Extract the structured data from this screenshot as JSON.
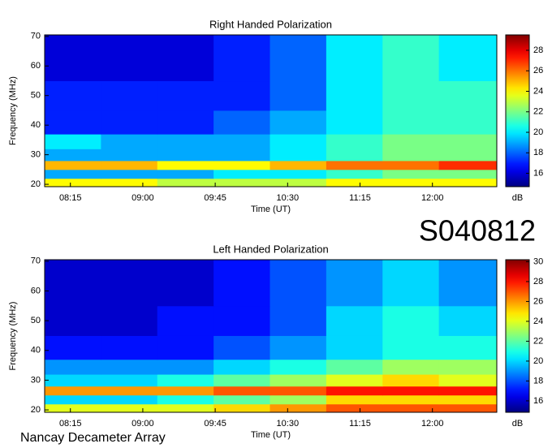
{
  "chart_data": [
    {
      "type": "heatmap",
      "title": "Right Handed Polarization",
      "x_label": "Time (UT)",
      "y_label": "Frequency (MHz)",
      "xlim": [
        479,
        760
      ],
      "ylim": [
        19.2,
        70.5
      ],
      "xticks": [
        {
          "value": 495,
          "label": "08:15"
        },
        {
          "value": 540,
          "label": "09:00"
        },
        {
          "value": 585,
          "label": "09:45"
        },
        {
          "value": 630,
          "label": "10:30"
        },
        {
          "value": 675,
          "label": "11:15"
        },
        {
          "value": 720,
          "label": "12:00"
        }
      ],
      "yticks": [
        20,
        30,
        40,
        50,
        60,
        70
      ],
      "xbins": [
        479,
        514,
        549,
        584,
        619,
        654,
        689,
        724,
        760
      ],
      "ybins": [
        19.2,
        22,
        25,
        28,
        32,
        37,
        45,
        55,
        70.5
      ],
      "z": [
        [
          24,
          24,
          23,
          23,
          23,
          24,
          24,
          24
        ],
        [
          19,
          19,
          19,
          20,
          20,
          21,
          22,
          22
        ],
        [
          25,
          25,
          24,
          24,
          25,
          26,
          26,
          27
        ],
        [
          19,
          19,
          19,
          19,
          20,
          21,
          22,
          22
        ],
        [
          20,
          19,
          19,
          19,
          20,
          21,
          22,
          22
        ],
        [
          17,
          17,
          17,
          18,
          19,
          20,
          21,
          21
        ],
        [
          17,
          17,
          17,
          17,
          18,
          20,
          21,
          21
        ],
        [
          16,
          16,
          16,
          17,
          18,
          20,
          21,
          20
        ]
      ],
      "colormap": "jet",
      "clim": [
        14.7,
        29.5
      ],
      "cticks": [
        16,
        18,
        20,
        22,
        24,
        26,
        28
      ],
      "clabel": "dB"
    },
    {
      "type": "heatmap",
      "title": "Left Handed Polarization",
      "x_label": "Time (UT)",
      "y_label": "Frequency (MHz)",
      "xlim": [
        479,
        760
      ],
      "ylim": [
        19.2,
        70.5
      ],
      "xticks": [
        {
          "value": 495,
          "label": "08:15"
        },
        {
          "value": 540,
          "label": "09:00"
        },
        {
          "value": 585,
          "label": "09:45"
        },
        {
          "value": 630,
          "label": "10:30"
        },
        {
          "value": 675,
          "label": "11:15"
        },
        {
          "value": 720,
          "label": "12:00"
        }
      ],
      "yticks": [
        20,
        30,
        40,
        50,
        60,
        70
      ],
      "xbins": [
        479,
        514,
        549,
        584,
        619,
        654,
        689,
        724,
        760
      ],
      "ybins": [
        19.2,
        22,
        25,
        28,
        32,
        37,
        45,
        55,
        70.5
      ],
      "z": [
        [
          24,
          24,
          24,
          25,
          26,
          27,
          27,
          27
        ],
        [
          20,
          20,
          21,
          22,
          23,
          25,
          25,
          25
        ],
        [
          26,
          26,
          26,
          27,
          27,
          28,
          28,
          28
        ],
        [
          20,
          20,
          21,
          22,
          23,
          24,
          25,
          24
        ],
        [
          19,
          19,
          19,
          20,
          21,
          22,
          23,
          23
        ],
        [
          17,
          17,
          17,
          18,
          19,
          20,
          21,
          21
        ],
        [
          16,
          16,
          17,
          17,
          18,
          20,
          21,
          20
        ],
        [
          16,
          16,
          16,
          17,
          18,
          19,
          20,
          19
        ]
      ],
      "colormap": "jet",
      "clim": [
        14.85,
        30.2
      ],
      "cticks": [
        16,
        18,
        20,
        22,
        24,
        26,
        28,
        30
      ],
      "clabel": "dB"
    }
  ],
  "code": "S040812",
  "footer": "Nancay Decameter Array"
}
